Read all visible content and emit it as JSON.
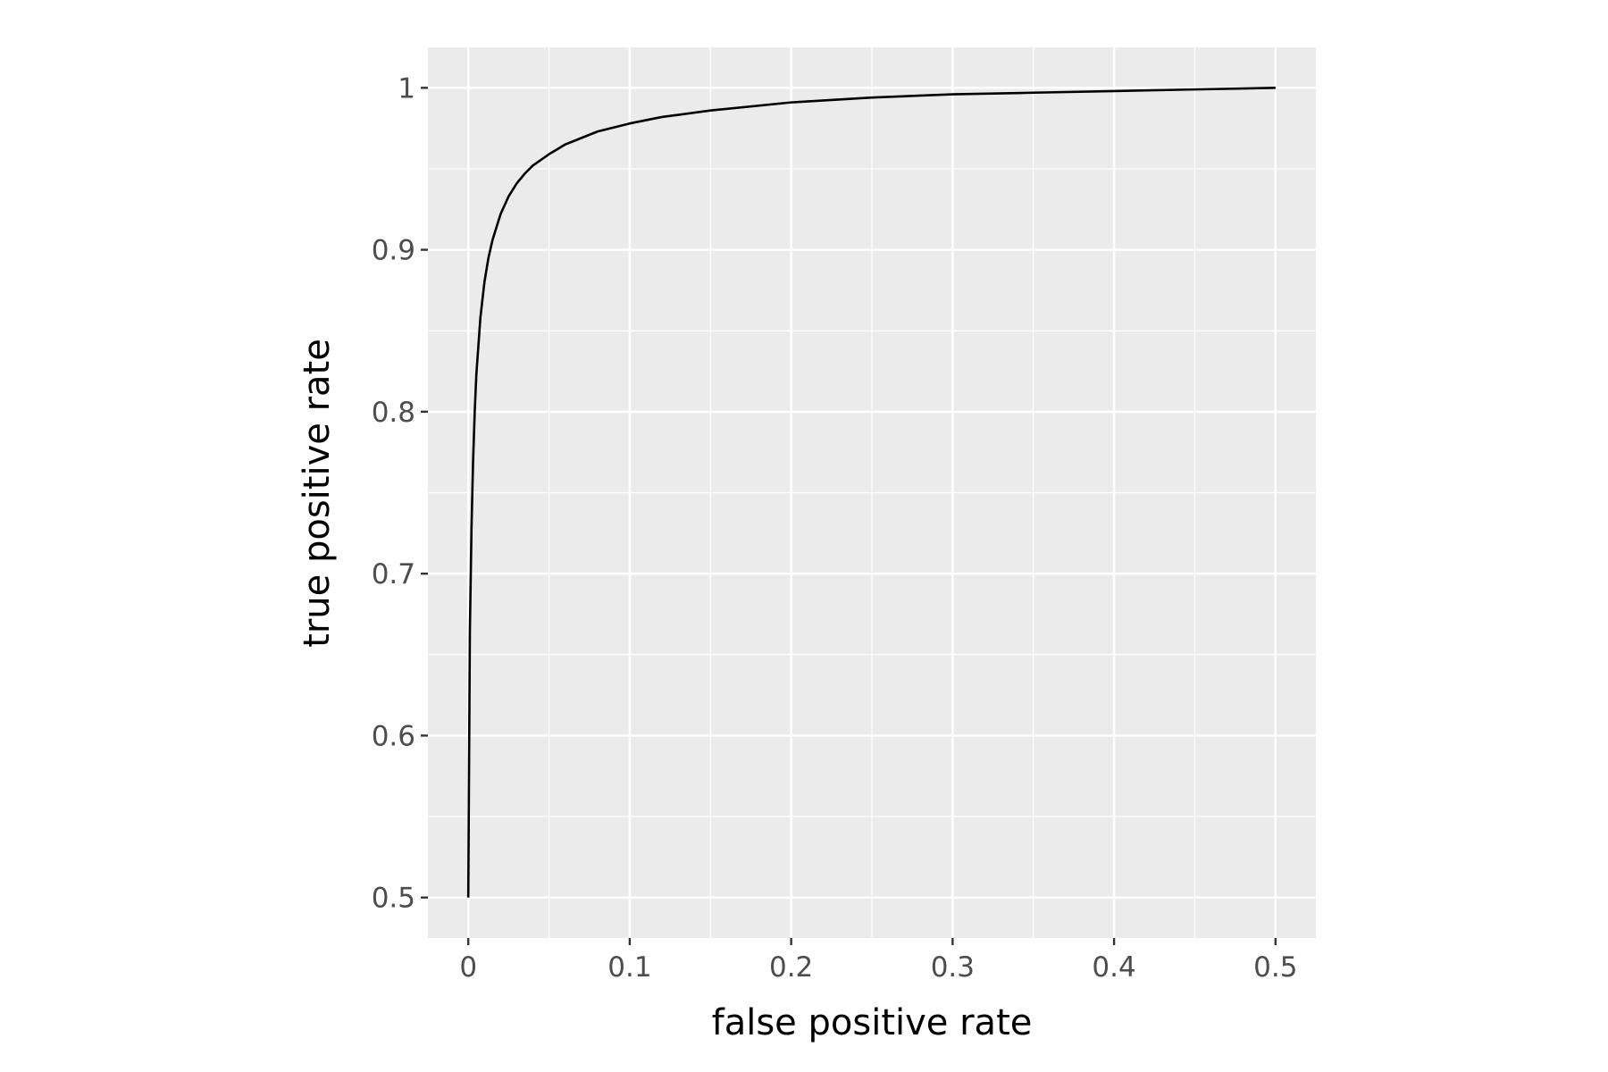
{
  "chart_data": {
    "type": "line",
    "title": "",
    "xlabel": "false positive rate",
    "ylabel": "true positive rate",
    "xlim": [
      -0.025,
      0.525
    ],
    "ylim": [
      0.475,
      1.025
    ],
    "x_ticks": [
      0,
      0.1,
      0.2,
      0.3,
      0.4,
      0.5
    ],
    "x_tick_labels": [
      "0",
      "0.1",
      "0.2",
      "0.3",
      "0.4",
      "0.5"
    ],
    "x_minor_ticks": [
      0.05,
      0.15,
      0.25,
      0.35,
      0.45
    ],
    "y_ticks": [
      0.5,
      0.6,
      0.7,
      0.8,
      0.9,
      1.0
    ],
    "y_tick_labels": [
      "0.5",
      "0.6",
      "0.7",
      "0.8",
      "0.9",
      "1"
    ],
    "y_minor_ticks": [
      0.55,
      0.65,
      0.75,
      0.85,
      0.95
    ],
    "grid": true,
    "legend": "none",
    "colors": {
      "panel_background": "#ebebeb",
      "grid": "#ffffff",
      "line": "#000000",
      "tick_label": "#4d4d4d",
      "axis_title": "#000000"
    },
    "series": [
      {
        "x": [
          0,
          0.001,
          0.002,
          0.003,
          0.004,
          0.005,
          0.0075,
          0.01,
          0.0125,
          0.015,
          0.02,
          0.025,
          0.03,
          0.035,
          0.04,
          0.05,
          0.06,
          0.07,
          0.08,
          0.1,
          0.12,
          0.15,
          0.2,
          0.25,
          0.3,
          0.35,
          0.4,
          0.45,
          0.5
        ],
        "y": [
          0.5,
          0.665,
          0.728,
          0.77,
          0.8,
          0.823,
          0.858,
          0.88,
          0.895,
          0.906,
          0.922,
          0.933,
          0.941,
          0.947,
          0.952,
          0.959,
          0.965,
          0.969,
          0.973,
          0.978,
          0.982,
          0.986,
          0.991,
          0.994,
          0.996,
          0.997,
          0.998,
          0.999,
          1.0
        ]
      }
    ]
  }
}
